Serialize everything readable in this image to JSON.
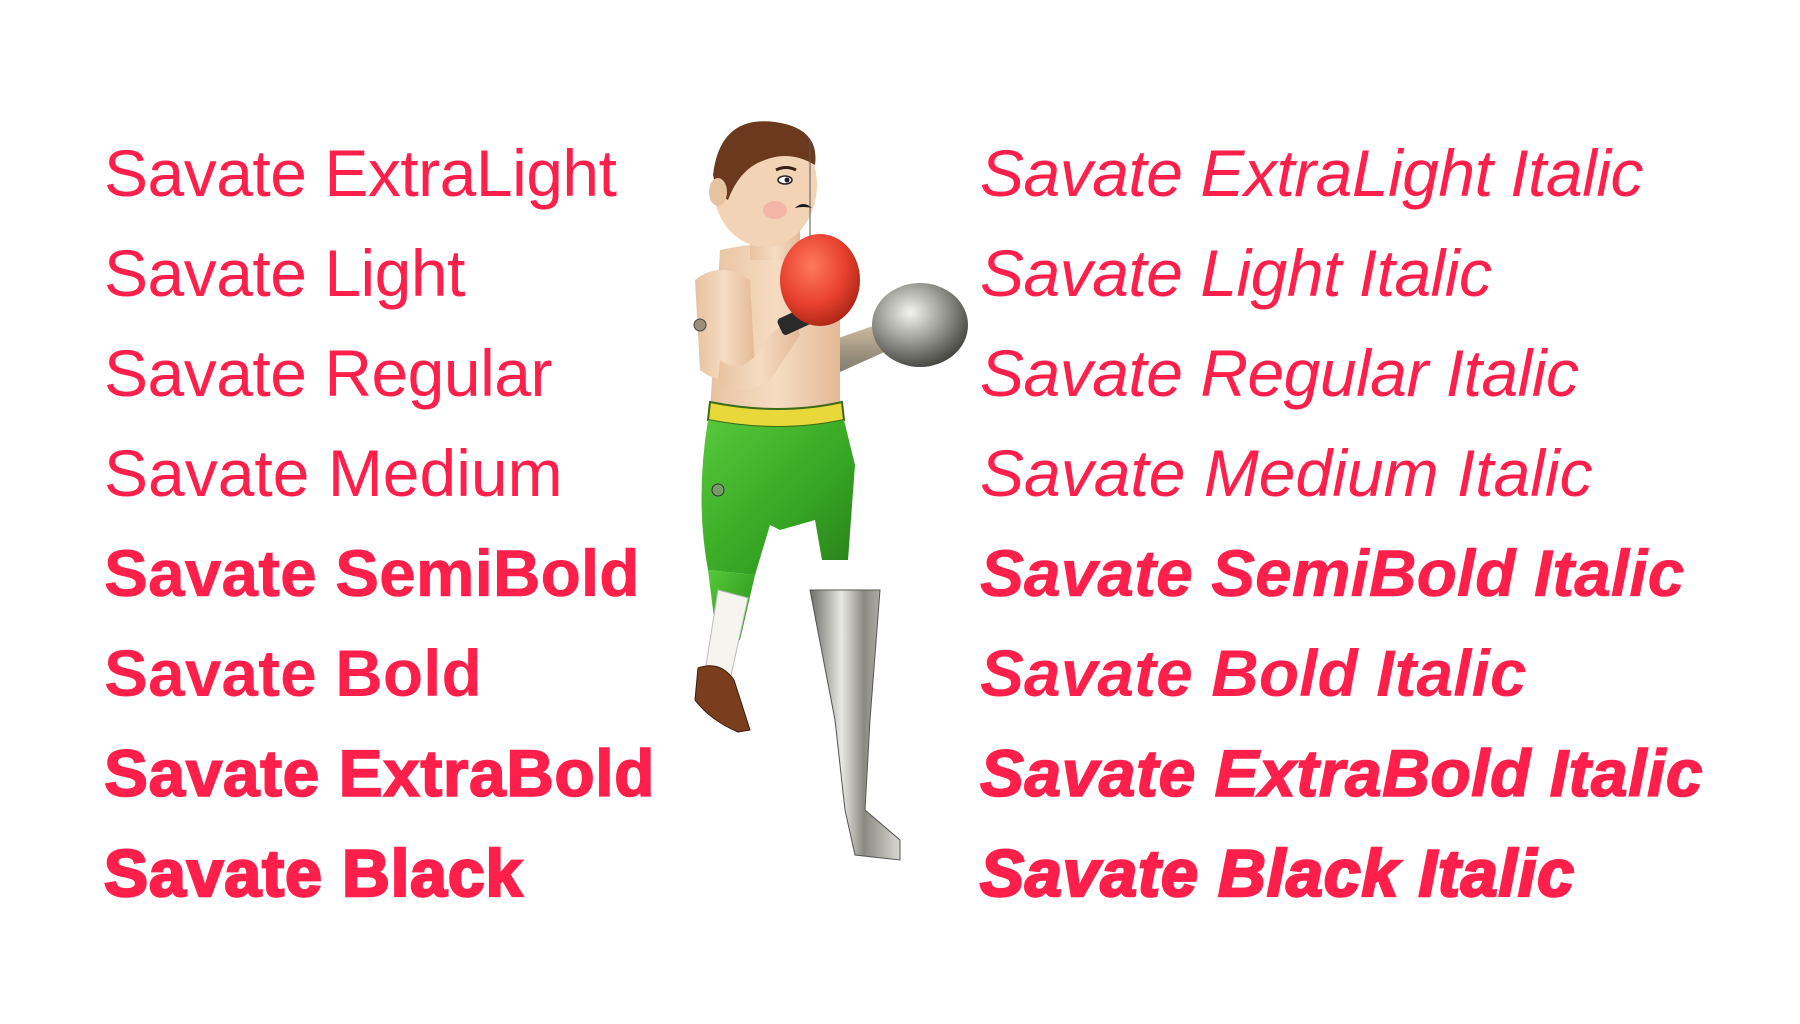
{
  "brand_color": "#ff1f4b",
  "styles_upright": [
    {
      "label": "Savate ExtraLight",
      "weight": 200
    },
    {
      "label": "Savate Light",
      "weight": 300
    },
    {
      "label": "Savate Regular",
      "weight": 400
    },
    {
      "label": "Savate Medium",
      "weight": 500
    },
    {
      "label": "Savate SemiBold",
      "weight": 600
    },
    {
      "label": "Savate Bold",
      "weight": 700
    },
    {
      "label": "Savate ExtraBold",
      "weight": 800
    },
    {
      "label": "Savate Black",
      "weight": 900
    }
  ],
  "styles_italic": [
    {
      "label": "Savate ExtraLight Italic",
      "weight": 200
    },
    {
      "label": "Savate Light Italic",
      "weight": 300
    },
    {
      "label": "Savate Regular Italic",
      "weight": 400
    },
    {
      "label": "Savate Medium Italic",
      "weight": 500
    },
    {
      "label": "Savate SemiBold Italic",
      "weight": 600
    },
    {
      "label": "Savate Bold Italic",
      "weight": 700
    },
    {
      "label": "Savate ExtraBold Italic",
      "weight": 800
    },
    {
      "label": "Savate Black Italic",
      "weight": 900
    }
  ],
  "illustration": {
    "subject": "tin-toy-boxer",
    "glove_color": "#e8402e",
    "shorts_color": "#3fb52a",
    "skin_color": "#f2d3b6",
    "hair_color": "#6b3a1e"
  }
}
